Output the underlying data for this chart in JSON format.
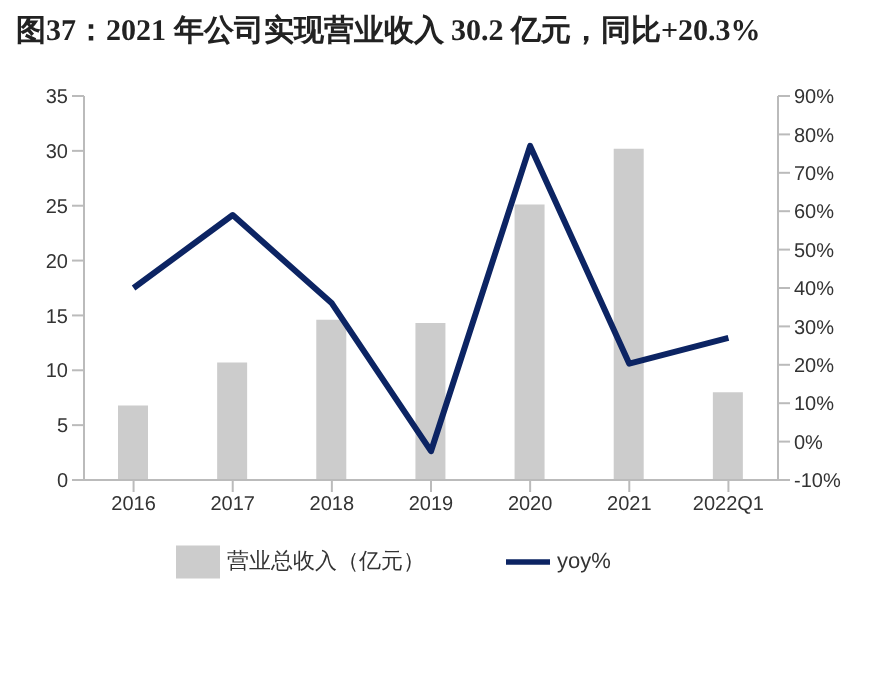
{
  "chart_data": {
    "type": "bar",
    "title": "图37：2021 年公司实现营业收入 30.2 亿元，同比+20.3%",
    "categories": [
      "2016",
      "2017",
      "2018",
      "2019",
      "2020",
      "2021",
      "2022Q1"
    ],
    "series": [
      {
        "name": "营业总收入（亿元）",
        "color": "#cccccc",
        "values": [
          6.8,
          10.7,
          14.6,
          14.3,
          25.1,
          30.2,
          8.0
        ]
      },
      {
        "name": "yoy%",
        "type": "line",
        "axis": "y2",
        "color": "#0c2463",
        "values": [
          40,
          59,
          36,
          -2.5,
          77,
          20.3,
          27
        ]
      }
    ],
    "ylim": [
      0,
      35
    ],
    "yticks": [
      0,
      5,
      10,
      15,
      20,
      25,
      30,
      35
    ],
    "y2lim": [
      -10,
      90
    ],
    "y2ticks": [
      {
        "value": -10,
        "label": "-10%"
      },
      {
        "value": 0,
        "label": "0%"
      },
      {
        "value": 10,
        "label": "10%"
      },
      {
        "value": 20,
        "label": "20%"
      },
      {
        "value": 30,
        "label": "30%"
      },
      {
        "value": 40,
        "label": "40%"
      },
      {
        "value": 50,
        "label": "50%"
      },
      {
        "value": 60,
        "label": "60%"
      },
      {
        "value": 70,
        "label": "70%"
      },
      {
        "value": 80,
        "label": "80%"
      },
      {
        "value": 90,
        "label": "90%"
      }
    ],
    "legend": "bottom",
    "grid": false,
    "marker": "none"
  }
}
